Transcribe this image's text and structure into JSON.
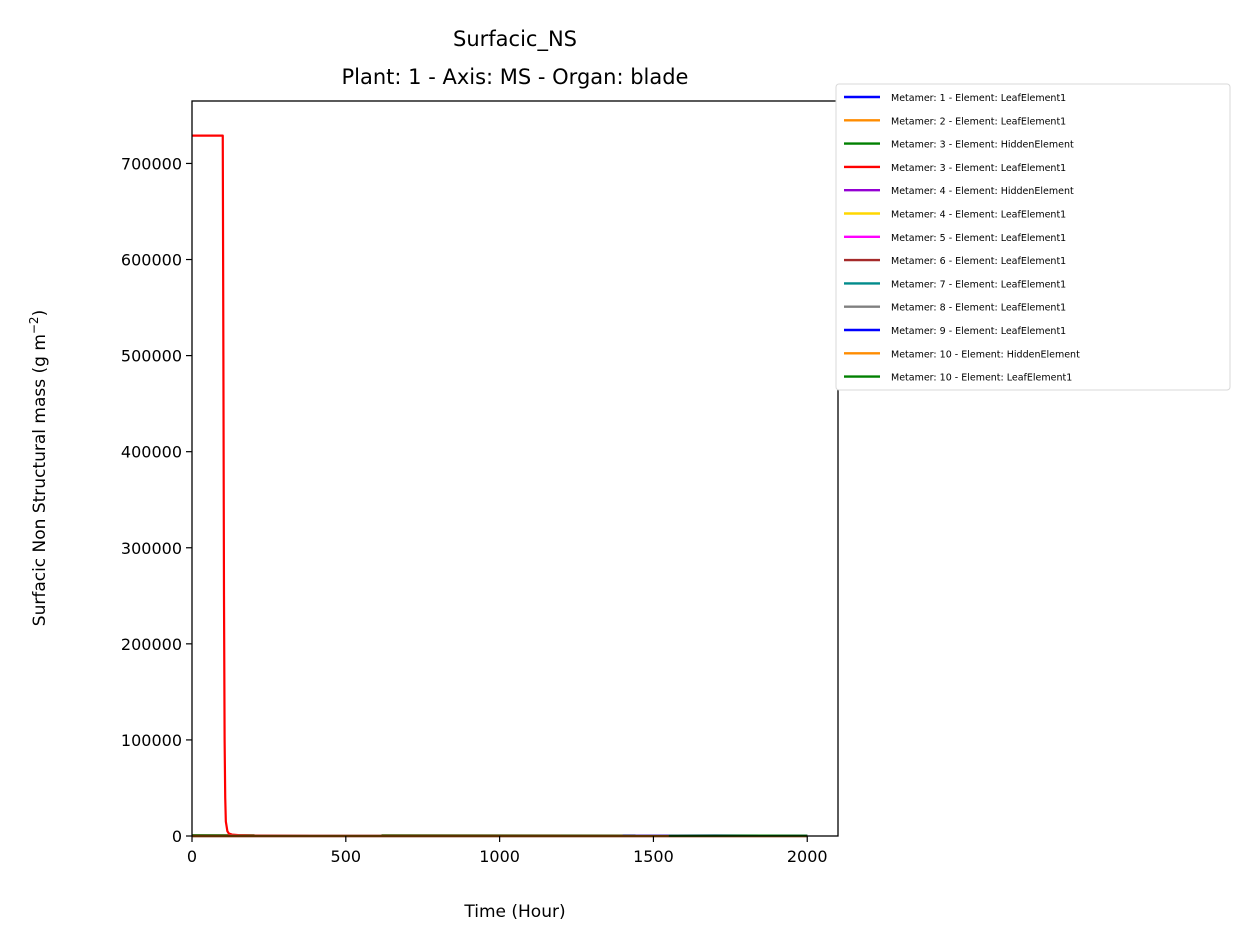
{
  "chart_data": {
    "type": "line",
    "title": "Surfacic_NS",
    "subtitle": "Plant: 1 - Axis: MS - Organ: blade",
    "xlabel": "Time (Hour)",
    "ylabel_main": "Surfacic Non Structural mass (g m",
    "ylabel_sup": "−2",
    "ylabel_end": ")",
    "xlim": [
      0,
      2100
    ],
    "ylim": [
      0,
      765000
    ],
    "xticks": [
      0,
      500,
      1000,
      1500,
      2000
    ],
    "xtick_labels": [
      "0",
      "500",
      "1000",
      "1500",
      "2000"
    ],
    "yticks": [
      0,
      100000,
      200000,
      300000,
      400000,
      500000,
      600000,
      700000
    ],
    "ytick_labels": [
      "0",
      "100000",
      "200000",
      "300000",
      "400000",
      "500000",
      "600000",
      "700000"
    ],
    "legend_position": "outside-right",
    "series": [
      {
        "name": "Metamer: 1 - Element: LeafElement1",
        "color": "#0000ff",
        "x": [
          0,
          2000
        ],
        "y": [
          0,
          0
        ]
      },
      {
        "name": "Metamer: 2 - Element: LeafElement1",
        "color": "#ff8c00",
        "x": [
          0,
          2000
        ],
        "y": [
          0,
          0
        ]
      },
      {
        "name": "Metamer: 3 - Element: HiddenElement",
        "color": "#008000",
        "x": [
          0,
          2000
        ],
        "y": [
          900,
          500
        ]
      },
      {
        "name": "Metamer: 3 - Element: LeafElement1",
        "color": "#ff0000",
        "x": [
          0,
          100,
          102,
          104,
          106,
          108,
          110,
          115,
          120,
          130,
          150,
          200,
          400,
          600,
          800,
          1000,
          1200
        ],
        "y": [
          729000,
          729000,
          500000,
          250000,
          100000,
          40000,
          15000,
          5000,
          2500,
          1500,
          1000,
          600,
          400,
          300,
          250,
          200,
          150
        ]
      },
      {
        "name": "Metamer: 4 - Element: HiddenElement",
        "color": "#9400d3",
        "x": [
          0,
          2000
        ],
        "y": [
          0,
          0
        ]
      },
      {
        "name": "Metamer: 4 - Element: LeafElement1",
        "color": "#ffd700",
        "x": [
          0,
          2000
        ],
        "y": [
          0,
          0
        ]
      },
      {
        "name": "Metamer: 5 - Element: LeafElement1",
        "color": "#ff00ff",
        "x": [
          0,
          2000
        ],
        "y": [
          0,
          0
        ]
      },
      {
        "name": "Metamer: 6 - Element: LeafElement1",
        "color": "#a52a2a",
        "x": [
          0,
          2000
        ],
        "y": [
          0,
          0
        ]
      },
      {
        "name": "Metamer: 7 - Element: LeafElement1",
        "color": "#008b8b",
        "x": [
          0,
          2000
        ],
        "y": [
          0,
          0
        ]
      },
      {
        "name": "Metamer: 8 - Element: LeafElement1",
        "color": "#808080",
        "x": [
          0,
          2000
        ],
        "y": [
          0,
          0
        ]
      },
      {
        "name": "Metamer: 9 - Element: LeafElement1",
        "color": "#0000ff",
        "x": [
          1400,
          1700,
          2000
        ],
        "y": [
          300,
          500,
          300
        ]
      },
      {
        "name": "Metamer: 10 - Element: HiddenElement",
        "color": "#ff8c00",
        "x": [
          0,
          2000
        ],
        "y": [
          0,
          0
        ]
      },
      {
        "name": "Metamer: 10 - Element: LeafElement1",
        "color": "#008000",
        "x": [
          1550,
          1800,
          2000
        ],
        "y": [
          200,
          400,
          300
        ]
      }
    ]
  }
}
